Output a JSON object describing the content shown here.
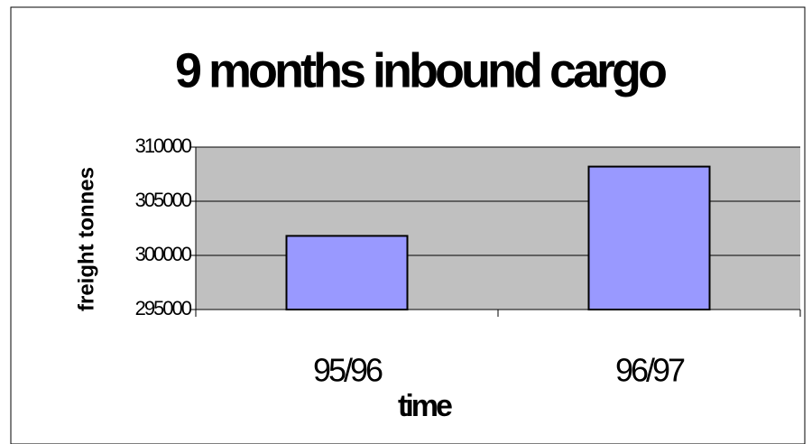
{
  "chart_data": {
    "type": "bar",
    "title": "9 months inbound cargo",
    "categories": [
      "95/96",
      "96/97"
    ],
    "values": [
      301800,
      308200
    ],
    "color": "#9999ff",
    "xlabel": "time",
    "ylabel": "freight tonnes",
    "ylim": [
      295000,
      310000
    ],
    "yticks": [
      295000,
      300000,
      305000,
      310000
    ],
    "grid": true,
    "plot_background": "#c0c0c0"
  }
}
